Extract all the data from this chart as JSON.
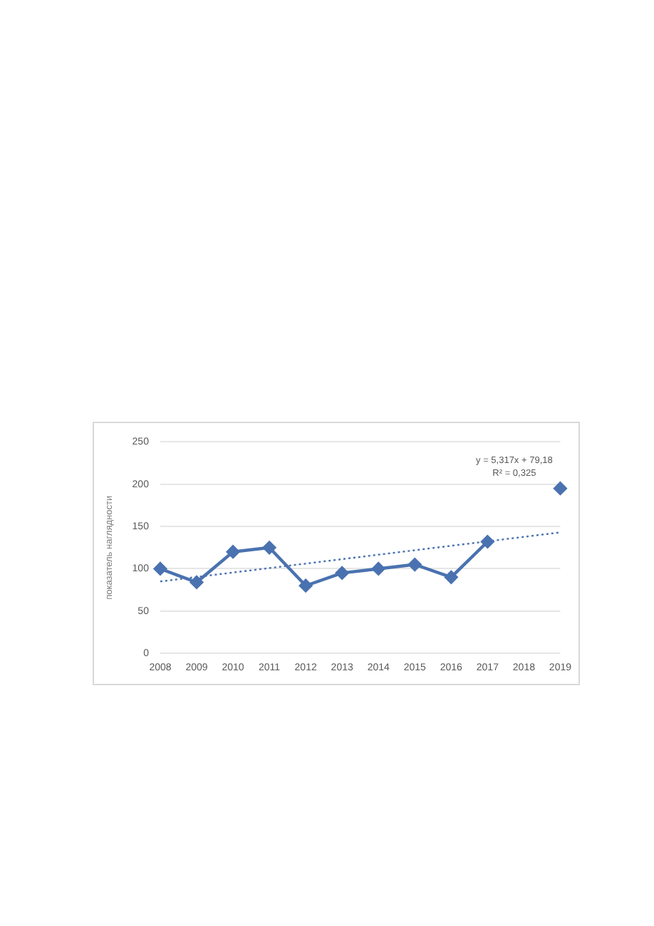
{
  "chart_data": {
    "type": "line",
    "ylabel": "показатель наглядности",
    "categories": [
      "2008",
      "2009",
      "2010",
      "2011",
      "2012",
      "2013",
      "2014",
      "2015",
      "2016",
      "2017",
      "2018",
      "2019"
    ],
    "series": [
      {
        "color": "#4a72b0",
        "marker": "diamond",
        "line_style": "solid",
        "values": [
          100,
          84,
          120,
          125,
          80,
          95,
          100,
          105,
          90,
          132,
          null,
          195
        ]
      },
      {
        "type": "line",
        "color": "#4a72b0",
        "marker": "none",
        "line_style": "dotted",
        "values": [
          85,
          null,
          null,
          null,
          null,
          null,
          null,
          null,
          null,
          null,
          null,
          143
        ]
      }
    ],
    "annotations": [
      "y = 5,317x + 79,18",
      "R² = 0,325"
    ],
    "ylim": [
      0,
      250
    ],
    "yticks": [
      0,
      50,
      100,
      150,
      200,
      250
    ],
    "grid": "y",
    "legend": false
  }
}
